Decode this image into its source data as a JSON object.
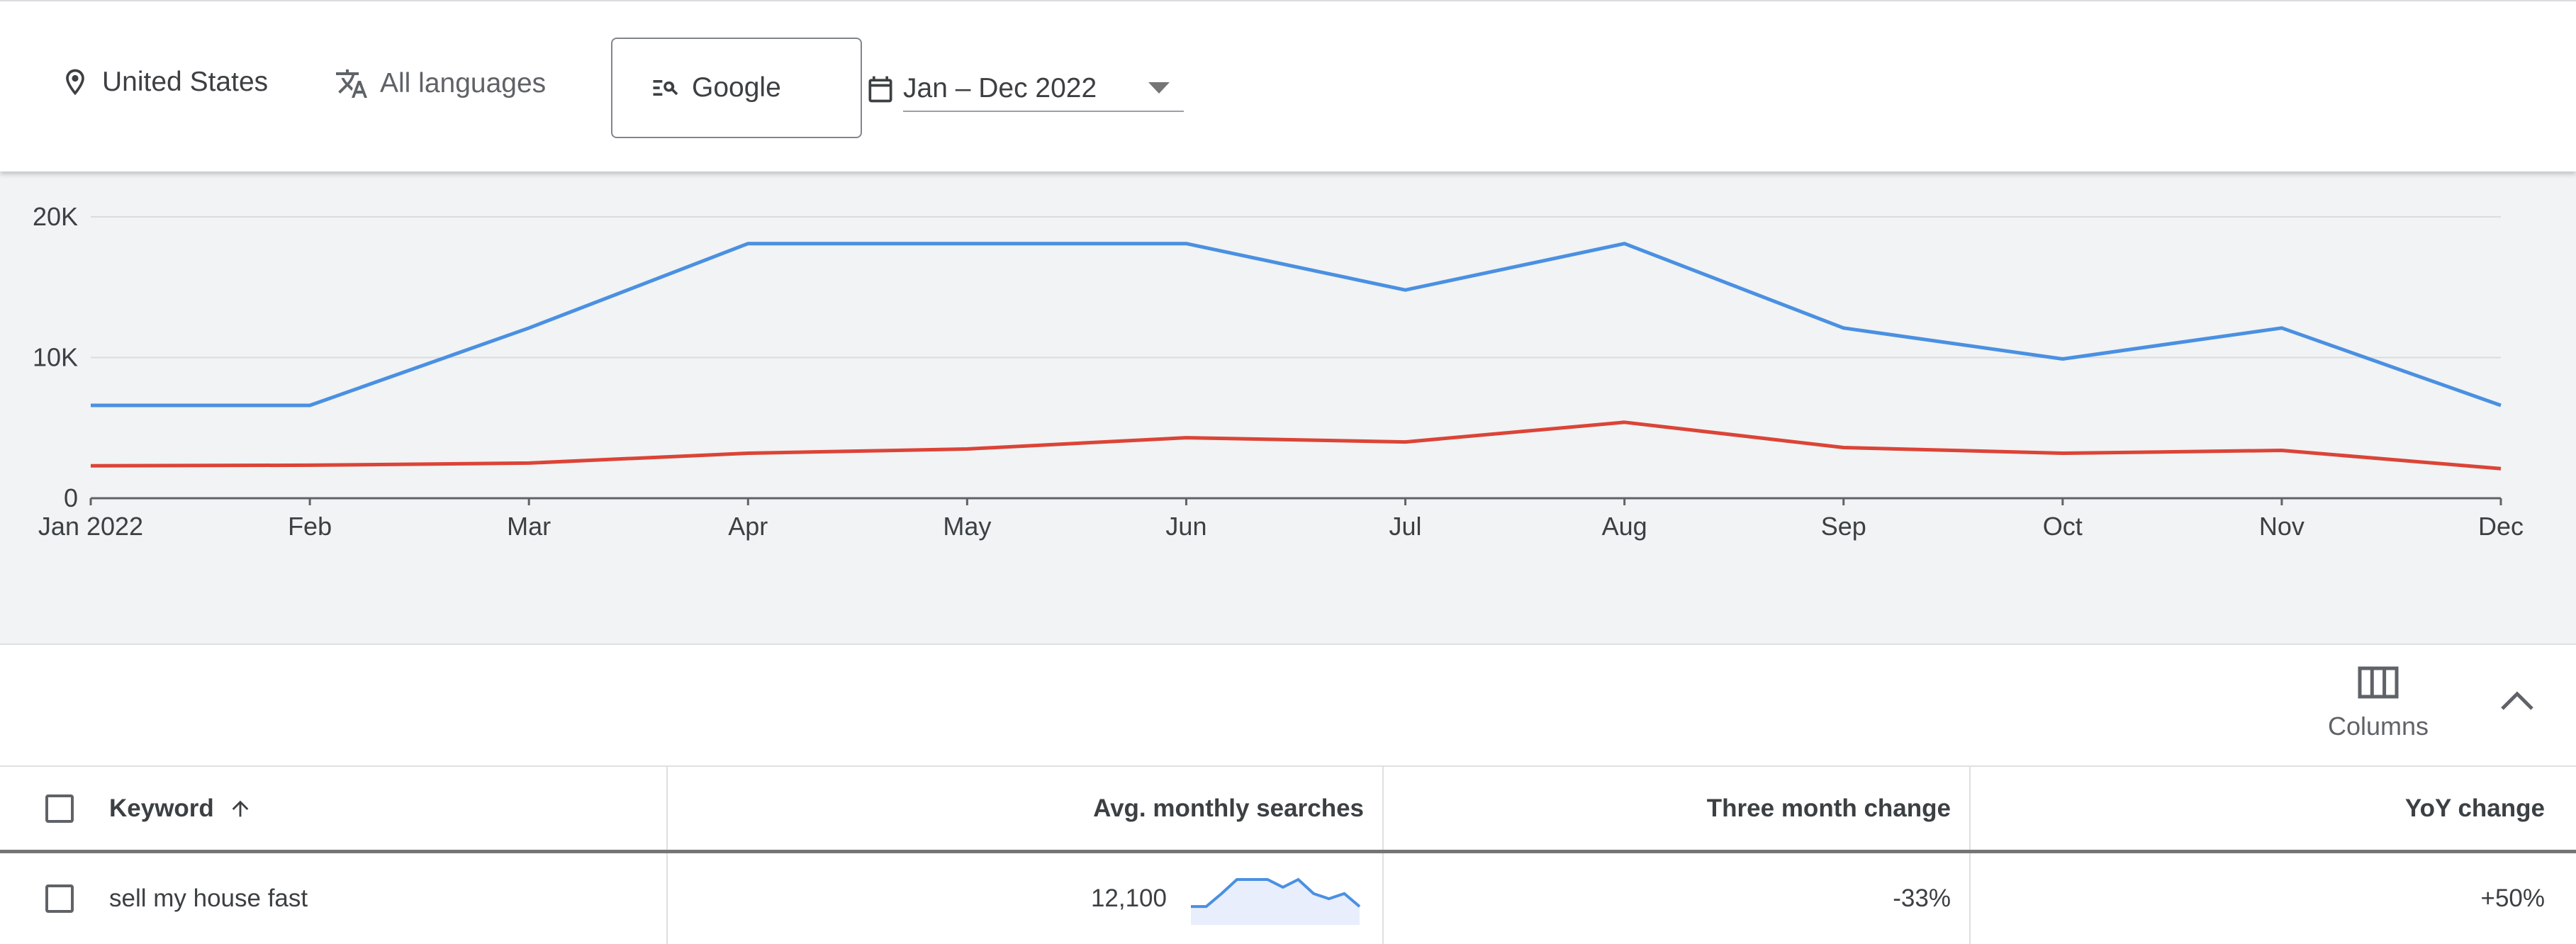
{
  "filters": {
    "location": "United States",
    "language": "All languages",
    "network": "Google",
    "date_range": "Jan – Dec 2022"
  },
  "icons": {
    "location": "location-pin-icon",
    "language": "translate-icon",
    "network": "search-network-icon",
    "date": "calendar-icon",
    "dropdown": "caret-down-icon",
    "columns": "columns-icon",
    "collapse": "chevron-up-icon",
    "sort": "arrow-up-icon"
  },
  "chart_data": {
    "type": "line",
    "x": [
      "Jan 2022",
      "Feb",
      "Mar",
      "Apr",
      "May",
      "Jun",
      "Jul",
      "Aug",
      "Sep",
      "Oct",
      "Nov",
      "Dec"
    ],
    "series": [
      {
        "color": "#4a90e2",
        "values": [
          6600,
          6600,
          12100,
          18100,
          18100,
          18100,
          14800,
          18100,
          12100,
          9900,
          12100,
          6600
        ]
      },
      {
        "color": "#db4437",
        "values": [
          2300,
          2350,
          2500,
          3200,
          3500,
          4300,
          4000,
          5400,
          3600,
          3200,
          3400,
          2100
        ]
      }
    ],
    "y_ticks": [
      "0",
      "10K",
      "20K"
    ],
    "y_tick_values": [
      0,
      10000,
      20000
    ],
    "ylim": [
      0,
      20000
    ],
    "grid": true
  },
  "toolbar": {
    "columns_label": "Columns"
  },
  "table": {
    "headers": {
      "keyword": "Keyword",
      "avg_monthly": "Avg. monthly searches",
      "three_month": "Three month change",
      "yoy": "YoY change"
    },
    "rows": [
      {
        "keyword": "sell my house fast",
        "avg_monthly": "12,100",
        "three_month": "-33%",
        "yoy": "+50%",
        "trend": [
          6600,
          6600,
          12100,
          18100,
          18100,
          18100,
          14800,
          18100,
          12100,
          9900,
          12100,
          6600
        ]
      }
    ]
  },
  "colors": {
    "series_primary": "#4a90e2",
    "series_secondary": "#db4437",
    "chart_background": "#f1f3f4"
  }
}
